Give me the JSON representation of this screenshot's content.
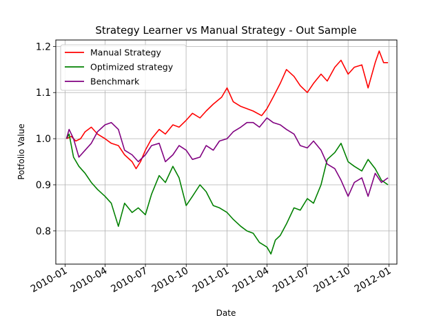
{
  "chart_data": {
    "type": "line",
    "title": "Strategy Learner vs Manual Strategy - Out Sample",
    "xlabel": "Date",
    "ylabel": "Potfolio Value",
    "xlim": [
      "2009-12-11",
      "2012-01-19"
    ],
    "ylim": [
      0.728,
      1.214
    ],
    "grid": true,
    "legend_placement": "top-left",
    "x_ticks": [
      "2010-01-01",
      "2010-04-01",
      "2010-07-01",
      "2010-10-01",
      "2011-01-01",
      "2011-04-01",
      "2011-07-01",
      "2011-10-01",
      "2012-01-01"
    ],
    "x_tick_labels": [
      "2010-01",
      "2010-04",
      "2010-07",
      "2010-10",
      "2011-01",
      "2011-04",
      "2011-07",
      "2011-10",
      "2012-01"
    ],
    "y_ticks": [
      0.8,
      0.9,
      1.0,
      1.1,
      1.2
    ],
    "y_tick_labels": [
      "0.8",
      "0.9",
      "1.0",
      "1.1",
      "1.2"
    ],
    "series": [
      {
        "name": "Manual Strategy",
        "color": "#ff0000",
        "points": [
          [
            "2010-01-04",
            1.0
          ],
          [
            "2010-01-15",
            1.005
          ],
          [
            "2010-01-25",
            0.995
          ],
          [
            "2010-02-05",
            1.0
          ],
          [
            "2010-02-15",
            1.015
          ],
          [
            "2010-03-01",
            1.025
          ],
          [
            "2010-03-15",
            1.01
          ],
          [
            "2010-04-01",
            1.0
          ],
          [
            "2010-04-15",
            0.99
          ],
          [
            "2010-05-01",
            0.985
          ],
          [
            "2010-05-15",
            0.965
          ],
          [
            "2010-06-01",
            0.95
          ],
          [
            "2010-06-10",
            0.935
          ],
          [
            "2010-06-20",
            0.95
          ],
          [
            "2010-07-01",
            0.975
          ],
          [
            "2010-07-15",
            1.0
          ],
          [
            "2010-08-01",
            1.02
          ],
          [
            "2010-08-15",
            1.01
          ],
          [
            "2010-09-01",
            1.03
          ],
          [
            "2010-09-15",
            1.025
          ],
          [
            "2010-10-01",
            1.04
          ],
          [
            "2010-10-15",
            1.055
          ],
          [
            "2010-11-01",
            1.045
          ],
          [
            "2010-11-15",
            1.06
          ],
          [
            "2010-12-01",
            1.075
          ],
          [
            "2010-12-20",
            1.09
          ],
          [
            "2011-01-01",
            1.11
          ],
          [
            "2011-01-15",
            1.08
          ],
          [
            "2011-02-01",
            1.07
          ],
          [
            "2011-02-15",
            1.065
          ],
          [
            "2011-03-01",
            1.06
          ],
          [
            "2011-03-20",
            1.05
          ],
          [
            "2011-04-01",
            1.065
          ],
          [
            "2011-04-15",
            1.09
          ],
          [
            "2011-05-01",
            1.12
          ],
          [
            "2011-05-15",
            1.15
          ],
          [
            "2011-06-01",
            1.135
          ],
          [
            "2011-06-15",
            1.115
          ],
          [
            "2011-07-01",
            1.1
          ],
          [
            "2011-07-15",
            1.12
          ],
          [
            "2011-08-01",
            1.14
          ],
          [
            "2011-08-15",
            1.125
          ],
          [
            "2011-09-01",
            1.155
          ],
          [
            "2011-09-15",
            1.17
          ],
          [
            "2011-10-01",
            1.14
          ],
          [
            "2011-10-15",
            1.155
          ],
          [
            "2011-11-01",
            1.16
          ],
          [
            "2011-11-15",
            1.11
          ],
          [
            "2011-12-01",
            1.165
          ],
          [
            "2011-12-10",
            1.19
          ],
          [
            "2011-12-20",
            1.165
          ],
          [
            "2011-12-30",
            1.165
          ]
        ]
      },
      {
        "name": "Optimized strategy",
        "color": "#008000",
        "points": [
          [
            "2010-01-04",
            1.0
          ],
          [
            "2010-01-10",
            1.01
          ],
          [
            "2010-01-20",
            0.96
          ],
          [
            "2010-02-01",
            0.94
          ],
          [
            "2010-02-15",
            0.925
          ],
          [
            "2010-03-01",
            0.905
          ],
          [
            "2010-03-15",
            0.89
          ],
          [
            "2010-04-01",
            0.875
          ],
          [
            "2010-04-15",
            0.86
          ],
          [
            "2010-05-01",
            0.81
          ],
          [
            "2010-05-15",
            0.86
          ],
          [
            "2010-06-01",
            0.84
          ],
          [
            "2010-06-15",
            0.85
          ],
          [
            "2010-07-01",
            0.835
          ],
          [
            "2010-07-15",
            0.88
          ],
          [
            "2010-08-01",
            0.92
          ],
          [
            "2010-08-15",
            0.905
          ],
          [
            "2010-09-01",
            0.94
          ],
          [
            "2010-09-15",
            0.915
          ],
          [
            "2010-10-01",
            0.855
          ],
          [
            "2010-10-15",
            0.875
          ],
          [
            "2010-11-01",
            0.9
          ],
          [
            "2010-11-15",
            0.885
          ],
          [
            "2010-12-01",
            0.855
          ],
          [
            "2010-12-15",
            0.85
          ],
          [
            "2011-01-01",
            0.84
          ],
          [
            "2011-01-15",
            0.825
          ],
          [
            "2011-02-01",
            0.81
          ],
          [
            "2011-02-15",
            0.8
          ],
          [
            "2011-03-01",
            0.795
          ],
          [
            "2011-03-15",
            0.775
          ],
          [
            "2011-04-01",
            0.765
          ],
          [
            "2011-04-10",
            0.75
          ],
          [
            "2011-04-20",
            0.78
          ],
          [
            "2011-05-01",
            0.79
          ],
          [
            "2011-05-15",
            0.815
          ],
          [
            "2011-06-01",
            0.85
          ],
          [
            "2011-06-15",
            0.845
          ],
          [
            "2011-07-01",
            0.87
          ],
          [
            "2011-07-15",
            0.86
          ],
          [
            "2011-08-01",
            0.9
          ],
          [
            "2011-08-15",
            0.955
          ],
          [
            "2011-09-01",
            0.97
          ],
          [
            "2011-09-15",
            0.99
          ],
          [
            "2011-10-01",
            0.95
          ],
          [
            "2011-10-15",
            0.94
          ],
          [
            "2011-11-01",
            0.93
          ],
          [
            "2011-11-15",
            0.955
          ],
          [
            "2011-12-01",
            0.935
          ],
          [
            "2011-12-15",
            0.91
          ],
          [
            "2011-12-30",
            0.9
          ]
        ]
      },
      {
        "name": "Benchmark",
        "color": "#800080",
        "points": [
          [
            "2010-01-04",
            1.0
          ],
          [
            "2010-01-10",
            1.02
          ],
          [
            "2010-01-20",
            1.0
          ],
          [
            "2010-02-01",
            0.96
          ],
          [
            "2010-02-15",
            0.975
          ],
          [
            "2010-03-01",
            0.99
          ],
          [
            "2010-03-15",
            1.015
          ],
          [
            "2010-04-01",
            1.03
          ],
          [
            "2010-04-15",
            1.035
          ],
          [
            "2010-05-01",
            1.02
          ],
          [
            "2010-05-15",
            0.975
          ],
          [
            "2010-06-01",
            0.965
          ],
          [
            "2010-06-15",
            0.95
          ],
          [
            "2010-07-01",
            0.965
          ],
          [
            "2010-07-15",
            0.985
          ],
          [
            "2010-08-01",
            0.99
          ],
          [
            "2010-08-15",
            0.95
          ],
          [
            "2010-09-01",
            0.965
          ],
          [
            "2010-09-15",
            0.985
          ],
          [
            "2010-10-01",
            0.975
          ],
          [
            "2010-10-15",
            0.955
          ],
          [
            "2010-11-01",
            0.96
          ],
          [
            "2010-11-15",
            0.985
          ],
          [
            "2010-12-01",
            0.975
          ],
          [
            "2010-12-15",
            0.995
          ],
          [
            "2011-01-01",
            1.0
          ],
          [
            "2011-01-15",
            1.015
          ],
          [
            "2011-02-01",
            1.025
          ],
          [
            "2011-02-15",
            1.035
          ],
          [
            "2011-03-01",
            1.035
          ],
          [
            "2011-03-15",
            1.025
          ],
          [
            "2011-04-01",
            1.045
          ],
          [
            "2011-04-15",
            1.035
          ],
          [
            "2011-05-01",
            1.03
          ],
          [
            "2011-05-15",
            1.02
          ],
          [
            "2011-06-01",
            1.01
          ],
          [
            "2011-06-15",
            0.985
          ],
          [
            "2011-07-01",
            0.98
          ],
          [
            "2011-07-15",
            0.995
          ],
          [
            "2011-08-01",
            0.975
          ],
          [
            "2011-08-15",
            0.945
          ],
          [
            "2011-09-01",
            0.935
          ],
          [
            "2011-09-15",
            0.91
          ],
          [
            "2011-10-01",
            0.875
          ],
          [
            "2011-10-15",
            0.905
          ],
          [
            "2011-11-01",
            0.915
          ],
          [
            "2011-11-15",
            0.875
          ],
          [
            "2011-12-01",
            0.925
          ],
          [
            "2011-12-15",
            0.905
          ],
          [
            "2011-12-30",
            0.915
          ]
        ]
      }
    ]
  }
}
